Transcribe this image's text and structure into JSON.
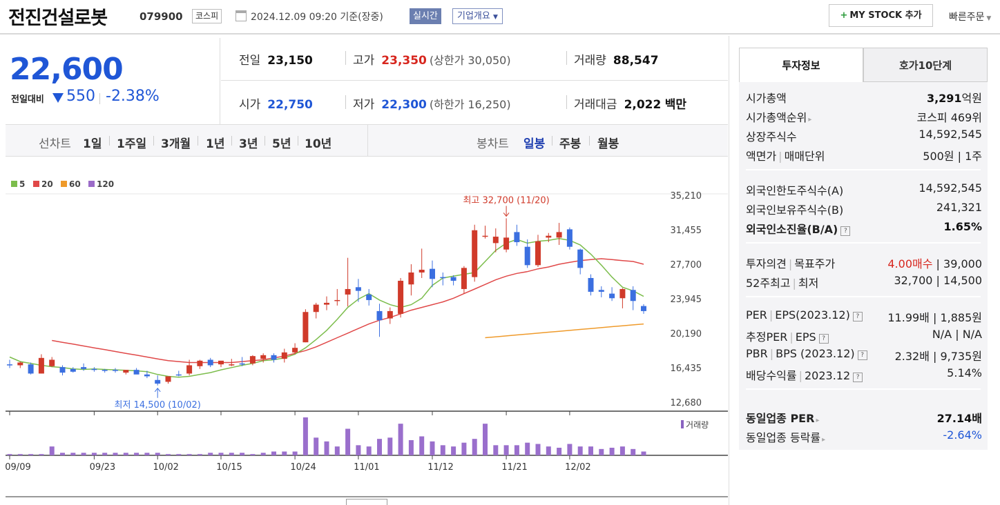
{
  "header": {
    "stock_name": "전진건설로봇",
    "stock_code": "079900",
    "market": "코스피",
    "datetime": "2024.12.09 09:20 기준(장중)",
    "realtime_label": "실시간",
    "company_overview_label": "기업개요",
    "my_stock_label": "MY STOCK 추가",
    "quick_order_label": "빠른주문"
  },
  "quote": {
    "price": "22,600",
    "change_label": "전일대비",
    "change": "550",
    "change_pct": "-2.38%",
    "prev_close_label": "전일",
    "prev_close": "23,150",
    "open_label": "시가",
    "open": "22,750",
    "high_label": "고가",
    "high": "23,350",
    "upper_limit": "(상한가 30,050)",
    "low_label": "저가",
    "low": "22,300",
    "lower_limit": "(하한가 16,250)",
    "volume_label": "거래량",
    "volume": "88,547",
    "amount_label": "거래대금",
    "amount": "2,022",
    "amount_unit": "백만"
  },
  "period_bar": {
    "line_chart_label": "선차트",
    "line_periods": [
      "1일",
      "1주일",
      "3개월",
      "1년",
      "3년",
      "5년",
      "10년"
    ],
    "candle_label": "봉차트",
    "candle_periods": [
      "일봉",
      "주봉",
      "월봉"
    ],
    "selected": "일봉"
  },
  "side_panel": {
    "tabs": [
      "투자정보",
      "호가10단계"
    ],
    "market_cap_label": "시가총액",
    "market_cap": "3,291",
    "market_cap_unit": "억원",
    "market_cap_rank_label": "시가총액순위",
    "market_cap_rank": "코스피 469위",
    "shares_label": "상장주식수",
    "shares": "14,592,545",
    "par_label": "액면가",
    "unit_label": "매매단위",
    "par_unit": "500원 | 1주",
    "foreign_limit_label": "외국인한도주식수(A)",
    "foreign_limit": "14,592,545",
    "foreign_hold_label": "외국인보유주식수(B)",
    "foreign_hold": "241,321",
    "foreign_ratio_label": "외국인소진율(B/A)",
    "foreign_ratio": "1.65%",
    "opinion_label": "투자의견",
    "target_label": "목표주가",
    "opinion": "4.00매수",
    "target": "39,000",
    "w52_label": "52주최고",
    "w52_low_label": "최저",
    "w52": "32,700 | 14,500",
    "per_label": "PER",
    "eps_label": "EPS(2023.12)",
    "per_eps": "11.99배 | 1,885원",
    "est_per_label": "추정PER",
    "est_eps_label": "EPS",
    "est_per_eps": "N/A | N/A",
    "pbr_label": "PBR",
    "bps_label": "BPS (2023.12)",
    "pbr_bps": "2.32배 | 9,735원",
    "dividend_label": "배당수익률",
    "dividend_year": "2023.12",
    "dividend": "5.14%",
    "sector_per_label": "동일업종 PER",
    "sector_per": "27.14배",
    "sector_change_label": "동일업종 등락률",
    "sector_change": "-2.64%"
  },
  "chart_data": {
    "type": "candlestick",
    "legend": [
      {
        "name": "5",
        "color": "#7cbd4c"
      },
      {
        "name": "20",
        "color": "#e04848"
      },
      {
        "name": "60",
        "color": "#ef9a2a"
      },
      {
        "name": "120",
        "color": "#9b6bc8"
      }
    ],
    "y_ticks": [
      "35,210",
      "31,455",
      "27,700",
      "23,945",
      "20,190",
      "16,435",
      "12,680"
    ],
    "ylim": [
      12680,
      35210
    ],
    "x_labels": [
      {
        "label": "09/09",
        "idx": 0
      },
      {
        "label": "09/23",
        "idx": 8
      },
      {
        "label": "10/02",
        "idx": 14
      },
      {
        "label": "10/15",
        "idx": 20
      },
      {
        "label": "10/24",
        "idx": 27
      },
      {
        "label": "11/01",
        "idx": 33
      },
      {
        "label": "11/12",
        "idx": 40
      },
      {
        "label": "11/21",
        "idx": 47
      },
      {
        "label": "12/02",
        "idx": 53
      }
    ],
    "annotation_high": "최고 32,700 (11/20)",
    "annotation_low": "최저 14,500 (10/02)",
    "volume_label": "거래량",
    "candles": [
      [
        16800,
        17300,
        16400,
        16700
      ],
      [
        16700,
        17100,
        16400,
        17000
      ],
      [
        16800,
        17000,
        15700,
        15800
      ],
      [
        15800,
        17900,
        15800,
        17500
      ],
      [
        16600,
        17600,
        16500,
        17300
      ],
      [
        16500,
        16700,
        15600,
        15900
      ],
      [
        16300,
        16500,
        15900,
        16000
      ],
      [
        16500,
        16900,
        16100,
        16300
      ],
      [
        16300,
        16500,
        16000,
        16200
      ],
      [
        16200,
        16300,
        15900,
        16100
      ],
      [
        16200,
        16400,
        15900,
        16100
      ],
      [
        15900,
        16200,
        15700,
        16200
      ],
      [
        16200,
        16400,
        15900,
        15700
      ],
      [
        15700,
        16100,
        15300,
        15500
      ],
      [
        15100,
        15600,
        14500,
        14700
      ],
      [
        14900,
        15500,
        14700,
        15500
      ],
      [
        15700,
        16100,
        15500,
        15600
      ],
      [
        15800,
        17300,
        15600,
        16700
      ],
      [
        16600,
        17300,
        16300,
        17200
      ],
      [
        17300,
        17500,
        16500,
        16700
      ],
      [
        16800,
        17100,
        16500,
        17200
      ],
      [
        16800,
        17400,
        16600,
        16800
      ],
      [
        16900,
        17600,
        16600,
        16800
      ],
      [
        16900,
        17800,
        16700,
        17700
      ],
      [
        17400,
        18000,
        17000,
        17800
      ],
      [
        17800,
        18000,
        17000,
        17300
      ],
      [
        17400,
        18500,
        17000,
        18100
      ],
      [
        18100,
        19100,
        17900,
        18600
      ],
      [
        19200,
        22800,
        19200,
        22500
      ],
      [
        22500,
        23500,
        21800,
        23300
      ],
      [
        23300,
        24200,
        22700,
        23500
      ],
      [
        23800,
        25000,
        23200,
        23800
      ],
      [
        24400,
        28400,
        23100,
        25000
      ],
      [
        25200,
        26100,
        23600,
        24800
      ],
      [
        24400,
        25000,
        23200,
        23800
      ],
      [
        22600,
        23400,
        19800,
        21600
      ],
      [
        21800,
        23000,
        21200,
        22600
      ],
      [
        22300,
        26200,
        21900,
        25900
      ],
      [
        25500,
        27700,
        24300,
        26800
      ],
      [
        26800,
        29400,
        26200,
        27100
      ],
      [
        27200,
        28100,
        25200,
        26100
      ],
      [
        26300,
        26800,
        25400,
        26200
      ],
      [
        26300,
        26500,
        25400,
        25900
      ],
      [
        25000,
        27500,
        24500,
        27300
      ],
      [
        26300,
        32000,
        25800,
        31400
      ],
      [
        30700,
        31900,
        30500,
        30800
      ],
      [
        30000,
        31600,
        29000,
        30700
      ],
      [
        29300,
        32700,
        29000,
        30600
      ],
      [
        31200,
        32000,
        29700,
        30100
      ],
      [
        29600,
        30400,
        27300,
        27600
      ],
      [
        27600,
        30900,
        27400,
        30200
      ],
      [
        30600,
        31100,
        30100,
        30800
      ],
      [
        30600,
        32200,
        29800,
        31200
      ],
      [
        31500,
        31700,
        29300,
        29600
      ],
      [
        29300,
        29400,
        26600,
        27300
      ],
      [
        26200,
        26600,
        24300,
        24700
      ],
      [
        24900,
        25300,
        24100,
        24700
      ],
      [
        24500,
        25200,
        23700,
        24000
      ],
      [
        24000,
        25100,
        22900,
        25000
      ],
      [
        24900,
        25300,
        22700,
        23700
      ],
      [
        23150,
        23350,
        22300,
        22600
      ]
    ],
    "ma5": [
      17600,
      17100,
      16900,
      16700,
      16550,
      16450,
      16300,
      16250,
      16300,
      16250,
      16200,
      16150,
      16100,
      16000,
      15700,
      15500,
      15400,
      15500,
      15700,
      15900,
      16200,
      16450,
      16700,
      16900,
      17200,
      17300,
      17500,
      17900,
      18600,
      19500,
      20500,
      21700,
      23000,
      23900,
      24500,
      23800,
      23300,
      23000,
      23300,
      24000,
      25400,
      26200,
      26400,
      26600,
      26800,
      28000,
      29200,
      30000,
      30400,
      30000,
      30200,
      30300,
      30500,
      30300,
      29800,
      28800,
      27600,
      26300,
      25200,
      24800,
      24200
    ],
    "ma20": [
      null,
      null,
      null,
      null,
      19400,
      19200,
      19000,
      18800,
      18600,
      18400,
      18200,
      18000,
      17800,
      17600,
      17400,
      17200,
      17100,
      17000,
      17000,
      17000,
      17000,
      17000,
      17100,
      17200,
      17300,
      17500,
      17700,
      18000,
      18300,
      18700,
      19200,
      19700,
      20200,
      20700,
      21200,
      21600,
      21900,
      22300,
      22700,
      23000,
      23300,
      23600,
      24000,
      24500,
      25000,
      25500,
      26000,
      26400,
      26700,
      26900,
      27200,
      27400,
      27700,
      27900,
      28100,
      28200,
      28300,
      28200,
      28100,
      28000,
      27700
    ],
    "ma60": [
      null,
      null,
      null,
      null,
      null,
      null,
      null,
      null,
      null,
      null,
      null,
      null,
      null,
      null,
      null,
      null,
      null,
      null,
      null,
      null,
      null,
      null,
      null,
      null,
      null,
      null,
      null,
      null,
      null,
      null,
      null,
      null,
      null,
      null,
      null,
      null,
      null,
      null,
      null,
      null,
      null,
      null,
      null,
      null,
      null,
      19700,
      19800,
      19900,
      20000,
      20100,
      20200,
      20300,
      20400,
      20500,
      20600,
      20700,
      20800,
      20900,
      21000,
      21100,
      21200
    ],
    "volume": [
      1,
      1,
      1,
      1,
      7,
      2,
      2,
      2,
      2,
      2,
      2,
      2,
      2,
      2,
      2,
      1,
      1,
      1,
      1,
      2,
      2,
      2,
      2,
      1,
      2,
      3,
      3,
      3,
      30,
      14,
      11,
      7,
      21,
      8,
      7,
      13,
      14,
      25,
      12,
      15,
      11,
      8,
      7,
      10,
      13,
      25,
      8,
      8,
      8,
      10,
      9,
      7,
      6,
      9,
      7,
      7,
      5,
      6,
      7,
      5,
      3
    ],
    "volume_max": 30
  }
}
